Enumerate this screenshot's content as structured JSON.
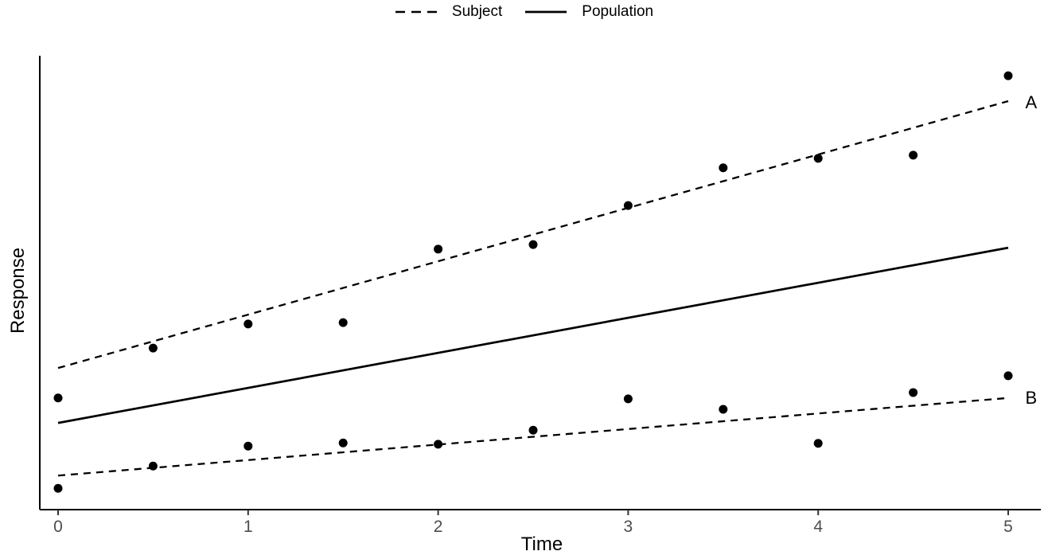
{
  "legend": {
    "position": "top-center",
    "items": [
      {
        "label": "Subject",
        "style": "dashed"
      },
      {
        "label": "Population",
        "style": "solid"
      }
    ]
  },
  "colors": {
    "line": "#000000",
    "point": "#000000",
    "axis": "#000000",
    "tick": "#333333",
    "tick_label": "#4d4d4d",
    "background": "#ffffff"
  },
  "chart_data": {
    "type": "line",
    "title": "",
    "xlabel": "Time",
    "ylabel": "Response",
    "xlim": [
      0,
      5
    ],
    "ylim": [
      0,
      10
    ],
    "grid": false,
    "x_ticks": [
      0,
      1,
      2,
      3,
      4,
      5
    ],
    "y_ticks": [],
    "y_axis_note": "no y tick marks or labels shown; y values are relative response units",
    "legend_position": "top-center",
    "series": [
      {
        "name": "subject-A-fit-line",
        "kind": "line",
        "style": "dashed",
        "x": [
          0,
          5
        ],
        "y": [
          3.12,
          9.0
        ]
      },
      {
        "name": "subject-B-fit-line",
        "kind": "line",
        "style": "dashed",
        "x": [
          0,
          5
        ],
        "y": [
          0.75,
          2.46
        ]
      },
      {
        "name": "population-line",
        "kind": "line",
        "style": "solid",
        "x": [
          0,
          5
        ],
        "y": [
          1.91,
          5.77
        ]
      },
      {
        "name": "subject-A-points",
        "kind": "scatter",
        "x": [
          0,
          0.5,
          1,
          1.5,
          2,
          2.5,
          3,
          3.5,
          4,
          4.5,
          5
        ],
        "y": [
          2.46,
          3.56,
          4.09,
          4.12,
          5.74,
          5.84,
          6.7,
          7.53,
          7.74,
          7.81,
          9.56
        ]
      },
      {
        "name": "subject-B-points",
        "kind": "scatter",
        "x": [
          0,
          0.5,
          1,
          1.5,
          2,
          2.5,
          3,
          3.5,
          4,
          4.5,
          5
        ],
        "y": [
          0.47,
          0.96,
          1.4,
          1.47,
          1.44,
          1.75,
          2.44,
          2.21,
          1.46,
          2.58,
          2.95
        ]
      }
    ],
    "annotations": [
      {
        "text": "A",
        "x": 5.09,
        "y": 8.98
      },
      {
        "text": "B",
        "x": 5.09,
        "y": 2.47
      }
    ]
  }
}
